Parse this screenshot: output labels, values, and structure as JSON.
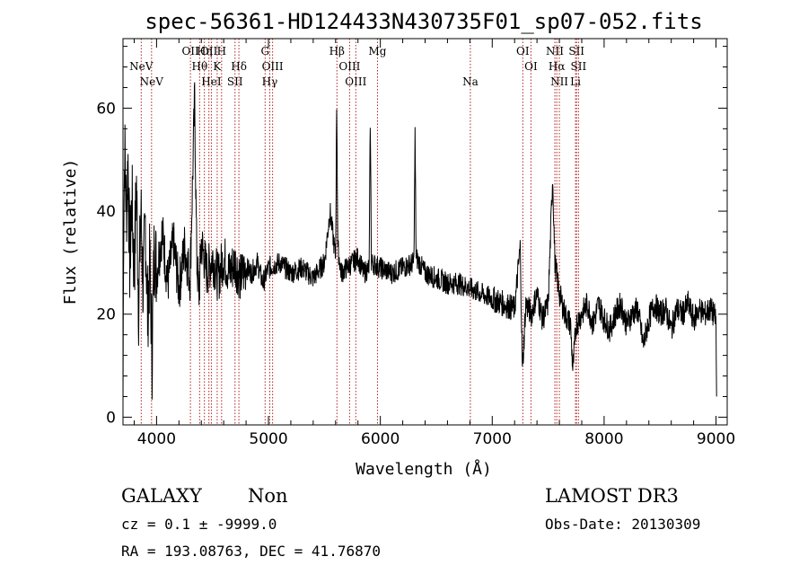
{
  "colors": {
    "spectrum": "#000000",
    "emission_line": "#b22222",
    "axes": "#000000"
  },
  "chart_data": {
    "type": "line",
    "title": "spec-56361-HD124433N430735F01_sp07-052.fits",
    "xlabel": "Wavelength (Å)",
    "ylabel": "Flux (relative)",
    "xlim": [
      3700,
      9100
    ],
    "ylim": [
      -1.5,
      73.5
    ],
    "xticks": [
      4000,
      5000,
      6000,
      7000,
      8000,
      9000
    ],
    "xtick_labels": [
      "4000",
      "5000",
      "6000",
      "7000",
      "8000",
      "9000"
    ],
    "yticks": [
      0,
      20,
      40,
      60
    ],
    "ytick_labels": [
      "0",
      "20",
      "40",
      "60"
    ],
    "series": [
      {
        "name": "spectrum",
        "anchors": [
          [
            3700,
            2
          ],
          [
            3705,
            35
          ],
          [
            3715,
            52
          ],
          [
            3730,
            40
          ],
          [
            3745,
            50
          ],
          [
            3760,
            30
          ],
          [
            3780,
            42
          ],
          [
            3800,
            28
          ],
          [
            3820,
            45
          ],
          [
            3840,
            22
          ],
          [
            3860,
            40
          ],
          [
            3880,
            25
          ],
          [
            3900,
            38
          ],
          [
            3920,
            20
          ],
          [
            3940,
            30
          ],
          [
            3960,
            12
          ],
          [
            3980,
            34
          ],
          [
            4000,
            28
          ],
          [
            4050,
            36
          ],
          [
            4100,
            26
          ],
          [
            4150,
            34
          ],
          [
            4200,
            25
          ],
          [
            4250,
            33
          ],
          [
            4300,
            27
          ],
          [
            4340,
            62
          ],
          [
            4360,
            30
          ],
          [
            4380,
            24
          ],
          [
            4400,
            34
          ],
          [
            4450,
            28
          ],
          [
            4500,
            31
          ],
          [
            4550,
            27
          ],
          [
            4600,
            31
          ],
          [
            4650,
            28
          ],
          [
            4700,
            30
          ],
          [
            4750,
            27
          ],
          [
            4800,
            29
          ],
          [
            4850,
            28
          ],
          [
            4900,
            30
          ],
          [
            4950,
            26
          ],
          [
            5000,
            29
          ],
          [
            5100,
            30
          ],
          [
            5200,
            28
          ],
          [
            5300,
            29
          ],
          [
            5400,
            27
          ],
          [
            5500,
            30
          ],
          [
            5550,
            40
          ],
          [
            5600,
            31
          ],
          [
            5610,
            61
          ],
          [
            5620,
            33
          ],
          [
            5650,
            28
          ],
          [
            5700,
            29
          ],
          [
            5750,
            30
          ],
          [
            5800,
            31
          ],
          [
            5850,
            28
          ],
          [
            5900,
            29
          ],
          [
            5910,
            58
          ],
          [
            5920,
            30
          ],
          [
            6000,
            29
          ],
          [
            6100,
            28
          ],
          [
            6200,
            29
          ],
          [
            6300,
            30
          ],
          [
            6310,
            55
          ],
          [
            6320,
            31
          ],
          [
            6400,
            28
          ],
          [
            6500,
            27
          ],
          [
            6600,
            26
          ],
          [
            6700,
            26
          ],
          [
            6800,
            25
          ],
          [
            6900,
            24
          ],
          [
            7000,
            23
          ],
          [
            7100,
            22
          ],
          [
            7200,
            21
          ],
          [
            7250,
            33
          ],
          [
            7270,
            9
          ],
          [
            7300,
            22
          ],
          [
            7350,
            20
          ],
          [
            7400,
            24
          ],
          [
            7450,
            19
          ],
          [
            7500,
            22
          ],
          [
            7540,
            47
          ],
          [
            7560,
            30
          ],
          [
            7600,
            24
          ],
          [
            7650,
            20
          ],
          [
            7700,
            18
          ],
          [
            7720,
            9
          ],
          [
            7750,
            18
          ],
          [
            7800,
            20
          ],
          [
            7850,
            22
          ],
          [
            7900,
            18
          ],
          [
            7950,
            22
          ],
          [
            8000,
            19
          ],
          [
            8050,
            17
          ],
          [
            8100,
            20
          ],
          [
            8150,
            22
          ],
          [
            8200,
            18
          ],
          [
            8250,
            20
          ],
          [
            8300,
            21
          ],
          [
            8350,
            14
          ],
          [
            8400,
            19
          ],
          [
            8450,
            22
          ],
          [
            8500,
            20
          ],
          [
            8550,
            21
          ],
          [
            8600,
            17
          ],
          [
            8650,
            21
          ],
          [
            8700,
            20
          ],
          [
            8750,
            22
          ],
          [
            8800,
            19
          ],
          [
            8850,
            21
          ],
          [
            8900,
            20
          ],
          [
            8950,
            21
          ],
          [
            9000,
            19
          ],
          [
            9005,
            3
          ]
        ]
      }
    ],
    "emission_lines": [
      {
        "name": "NeV",
        "wavelength": 3346,
        "row": 1
      },
      {
        "name": "NeV",
        "wavelength": 3426,
        "row": 2
      },
      {
        "name": "OII",
        "wavelength": 3727,
        "row": 0
      },
      {
        "name": "OII",
        "wavelength": 3870,
        "row": 0
      },
      {
        "name": "Hη",
        "wavelength": 3835,
        "row": 0
      },
      {
        "name": "H",
        "wavelength": 3968,
        "row": 0
      },
      {
        "name": "Hθ",
        "wavelength": 3798,
        "row": 1
      },
      {
        "name": "K",
        "wavelength": 3934,
        "row": 1
      },
      {
        "name": "HeI",
        "wavelength": 3889,
        "row": 2
      },
      {
        "name": "Hδ",
        "wavelength": 4102,
        "row": 1
      },
      {
        "name": "SII",
        "wavelength": 4072,
        "row": 2
      },
      {
        "name": "G",
        "wavelength": 4305,
        "row": 0
      },
      {
        "name": "OIII",
        "wavelength": 4363,
        "row": 1
      },
      {
        "name": "Hγ",
        "wavelength": 4341,
        "row": 2
      },
      {
        "name": "Hβ",
        "wavelength": 4861,
        "row": 0
      },
      {
        "name": "OIII",
        "wavelength": 4959,
        "row": 1
      },
      {
        "name": "OIII",
        "wavelength": 5007,
        "row": 2
      },
      {
        "name": "Mg",
        "wavelength": 5175,
        "row": 0
      },
      {
        "name": "Na",
        "wavelength": 5894,
        "row": 2
      },
      {
        "name": "OI",
        "wavelength": 6300,
        "row": 0
      },
      {
        "name": "OI",
        "wavelength": 6363,
        "row": 1
      },
      {
        "name": "NII",
        "wavelength": 6548,
        "row": 0
      },
      {
        "name": "Hα",
        "wavelength": 6563,
        "row": 1
      },
      {
        "name": "NII",
        "wavelength": 6583,
        "row": 2
      },
      {
        "name": "SII",
        "wavelength": 6716,
        "row": 0
      },
      {
        "name": "SII",
        "wavelength": 6731,
        "row": 1
      },
      {
        "name": "Li",
        "wavelength": 6708,
        "row": 2
      }
    ],
    "redshift_factor": 1.1545
  },
  "info": {
    "class": "GALAXY",
    "subclass": "Non",
    "survey": "LAMOST DR3",
    "cz": "cz = 0.1 ± -9999.0",
    "obs_date": "Obs-Date: 20130309",
    "coords": "RA = 193.08763, DEC =  41.76870"
  }
}
